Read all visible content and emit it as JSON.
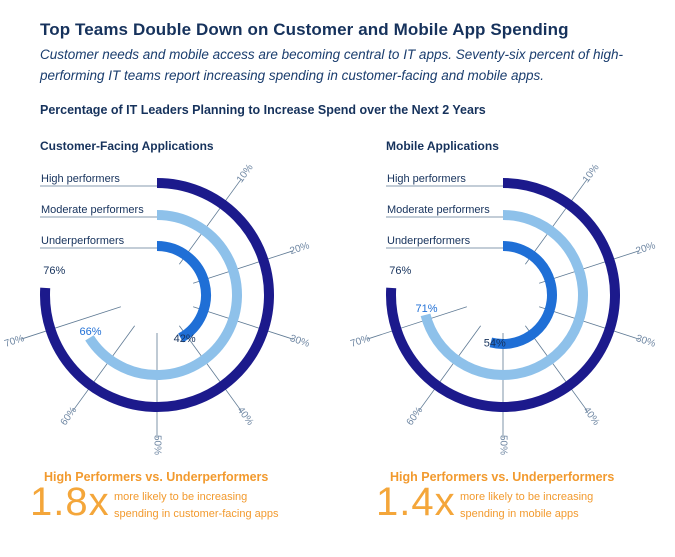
{
  "title": "Top Teams Double Down on Customer and Mobile App Spending",
  "subtitle": "Customer needs and mobile access are becoming central to IT apps. Seventy-six percent of high-performing IT teams report increasing spending in customer-facing and mobile apps.",
  "subhead": "Percentage of IT Leaders Planning to Increase Spend over the Next 2 Years",
  "colors": {
    "high": "#1c1a8c",
    "moderate": "#8ec1ea",
    "under": "#1f6fd6",
    "axis": "#5f7a94",
    "orange": "#f29a2e"
  },
  "chart_data": [
    {
      "type": "radial-bar",
      "title": "Customer-Facing Applications",
      "scale_ticks": [
        "10%",
        "20%",
        "30%",
        "40%",
        "50%",
        "60%",
        "70%"
      ],
      "axis_max": 100,
      "series": [
        {
          "name": "High performers",
          "value": 76,
          "value_label": "76%"
        },
        {
          "name": "Moderate performers",
          "value": 66,
          "value_label": ""
        },
        {
          "name": "Underperformers",
          "value": 42,
          "value_label": "42%"
        }
      ],
      "extra_label": "66%",
      "comparison": {
        "heading": "High Performers vs. Underperformers",
        "multiplier": "1.8x",
        "description": "more likely to be increasing spending in customer-facing apps"
      }
    },
    {
      "type": "radial-bar",
      "title": "Mobile Applications",
      "scale_ticks": [
        "10%",
        "20%",
        "30%",
        "40%",
        "50%",
        "60%",
        "70%"
      ],
      "axis_max": 100,
      "series": [
        {
          "name": "High performers",
          "value": 76,
          "value_label": "76%"
        },
        {
          "name": "Moderate performers",
          "value": 71,
          "value_label": ""
        },
        {
          "name": "Underperformers",
          "value": 54,
          "value_label": "54%"
        }
      ],
      "extra_label": "71%",
      "comparison": {
        "heading": "High Performers vs. Underperformers",
        "multiplier": "1.4x",
        "description": "more likely to be increasing spending in mobile apps"
      }
    }
  ]
}
